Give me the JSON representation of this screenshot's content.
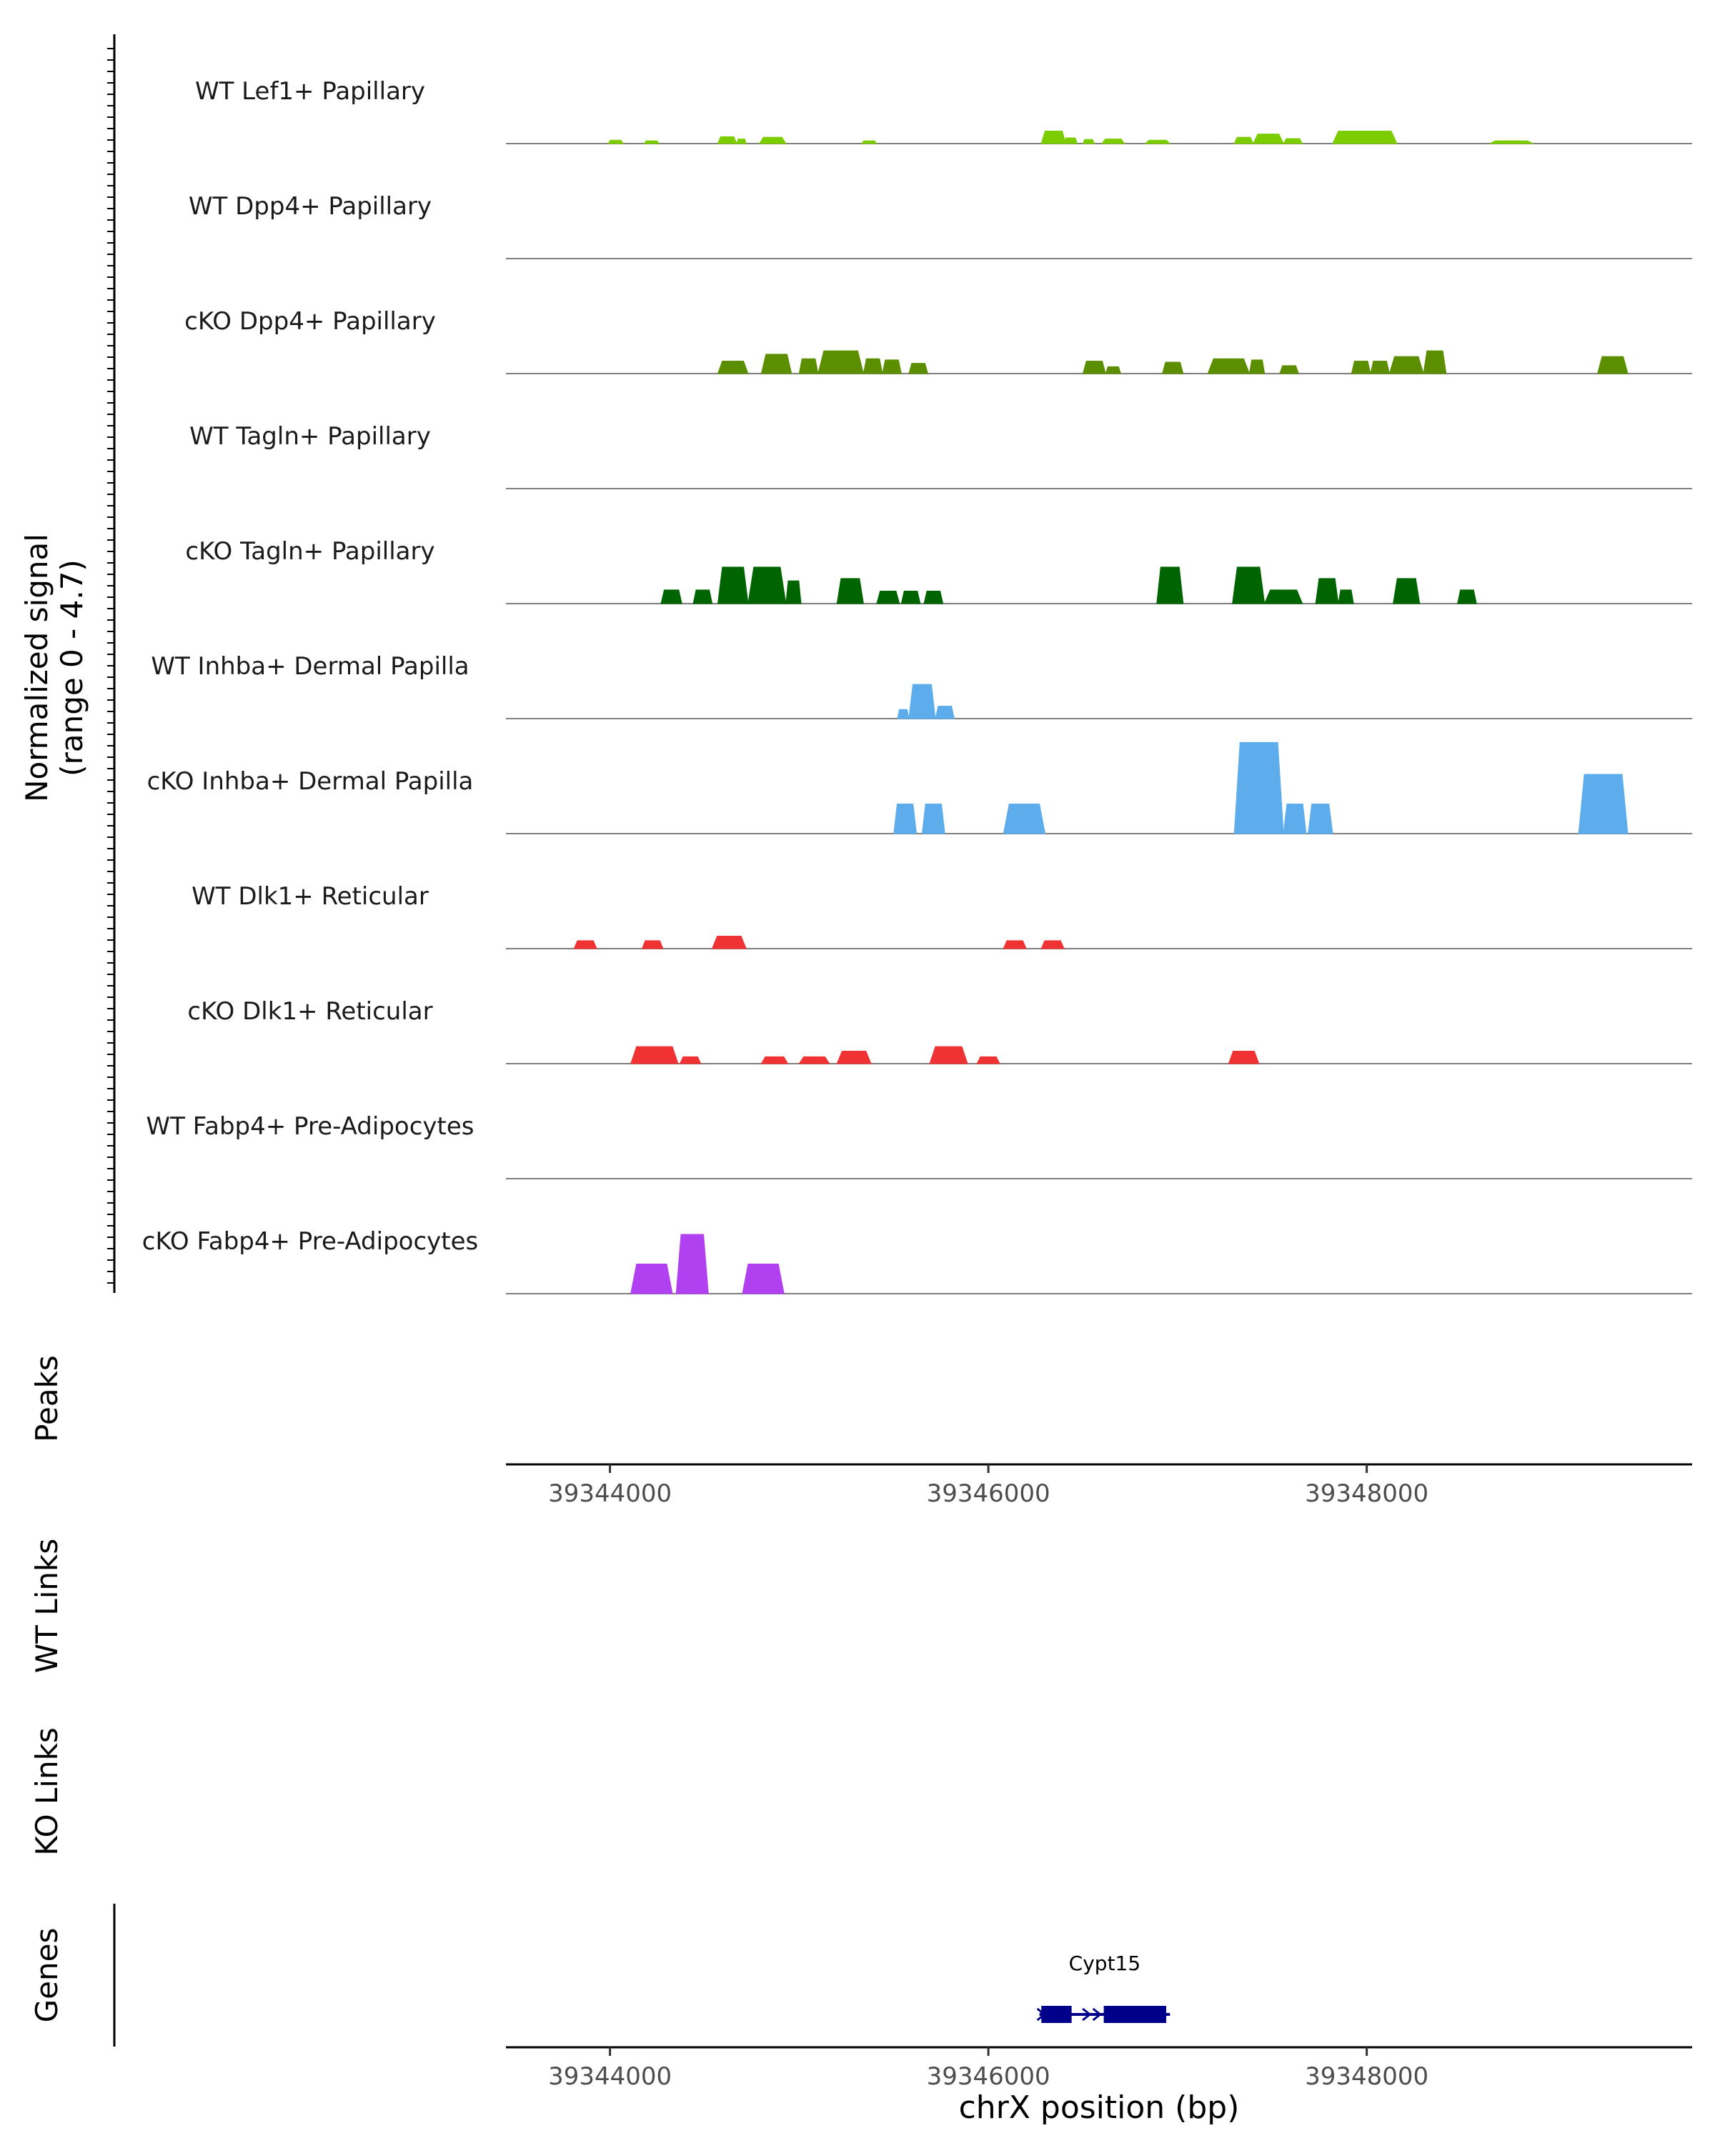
{
  "chart_data": {
    "type": "coverage-track",
    "y_axis_label_line1": "Normalized signal",
    "y_axis_label_line2": "(range 0 - 4.7)",
    "ylim": [
      0,
      4.7
    ],
    "xlim": [
      39343450,
      39349720
    ],
    "x_ticks": [
      39344000,
      39346000,
      39348000
    ],
    "x_tick_labels": [
      "39344000",
      "39346000",
      "39348000"
    ],
    "x_label": "chrX position (bp)",
    "panel_labels": {
      "peaks": "Peaks",
      "wt_links": "WT Links",
      "ko_links": "KO Links",
      "genes": "Genes"
    },
    "tracks": [
      {
        "name": "WT Lef1+ Papillary",
        "color": "#7CCD00",
        "peaks": [
          [
            39343990,
            39344070,
            0.15
          ],
          [
            39344180,
            39344260,
            0.12
          ],
          [
            39344570,
            39344670,
            0.3
          ],
          [
            39344670,
            39344720,
            0.2
          ],
          [
            39344790,
            39344930,
            0.28
          ],
          [
            39345330,
            39345410,
            0.12
          ],
          [
            39346280,
            39346410,
            0.55
          ],
          [
            39346400,
            39346470,
            0.25
          ],
          [
            39346500,
            39346560,
            0.18
          ],
          [
            39346600,
            39346720,
            0.2
          ],
          [
            39346830,
            39346960,
            0.15
          ],
          [
            39347300,
            39347400,
            0.28
          ],
          [
            39347400,
            39347560,
            0.42
          ],
          [
            39347560,
            39347660,
            0.22
          ],
          [
            39347820,
            39348160,
            0.55
          ],
          [
            39348650,
            39348880,
            0.12
          ]
        ]
      },
      {
        "name": "WT Dpp4+ Papillary",
        "color": "#5B8E00",
        "peaks": []
      },
      {
        "name": "cKO Dpp4+ Papillary",
        "color": "#5B8E00",
        "peaks": [
          [
            39344570,
            39344730,
            0.55
          ],
          [
            39344800,
            39344960,
            0.85
          ],
          [
            39345000,
            39345100,
            0.65
          ],
          [
            39345100,
            39345340,
            1.0
          ],
          [
            39345340,
            39345440,
            0.65
          ],
          [
            39345440,
            39345540,
            0.6
          ],
          [
            39345580,
            39345680,
            0.45
          ],
          [
            39346500,
            39346620,
            0.55
          ],
          [
            39346620,
            39346700,
            0.3
          ],
          [
            39346920,
            39347030,
            0.5
          ],
          [
            39347160,
            39347380,
            0.65
          ],
          [
            39347380,
            39347460,
            0.6
          ],
          [
            39347540,
            39347640,
            0.35
          ],
          [
            39347920,
            39348020,
            0.55
          ],
          [
            39348020,
            39348120,
            0.55
          ],
          [
            39348120,
            39348300,
            0.75
          ],
          [
            39348300,
            39348420,
            1.0
          ],
          [
            39349220,
            39349380,
            0.75
          ]
        ]
      },
      {
        "name": "WT Tagln+ Papillary",
        "color": "#006400",
        "peaks": []
      },
      {
        "name": "cKO Tagln+ Papillary",
        "color": "#006400",
        "peaks": [
          [
            39344270,
            39344380,
            0.6
          ],
          [
            39344440,
            39344540,
            0.6
          ],
          [
            39344570,
            39344730,
            1.6
          ],
          [
            39344730,
            39344930,
            1.6
          ],
          [
            39344930,
            39345010,
            1.0
          ],
          [
            39345200,
            39345340,
            1.1
          ],
          [
            39345410,
            39345530,
            0.55
          ],
          [
            39345540,
            39345640,
            0.55
          ],
          [
            39345660,
            39345760,
            0.55
          ],
          [
            39346890,
            39347030,
            1.6
          ],
          [
            39347290,
            39347460,
            1.6
          ],
          [
            39347460,
            39347660,
            0.6
          ],
          [
            39347730,
            39347850,
            1.1
          ],
          [
            39347850,
            39347930,
            0.6
          ],
          [
            39348140,
            39348280,
            1.1
          ],
          [
            39348480,
            39348580,
            0.6
          ]
        ]
      },
      {
        "name": "WT Inhba+ Dermal Papilla",
        "color": "#5DADEC",
        "peaks": [
          [
            39345520,
            39345580,
            0.4
          ],
          [
            39345580,
            39345720,
            1.5
          ],
          [
            39345720,
            39345820,
            0.55
          ]
        ]
      },
      {
        "name": "cKO Inhba+ Dermal Papilla",
        "color": "#5DADEC",
        "peaks": [
          [
            39345500,
            39345620,
            1.3
          ],
          [
            39345650,
            39345770,
            1.3
          ],
          [
            39346080,
            39346300,
            1.3
          ],
          [
            39347300,
            39347560,
            4.0
          ],
          [
            39347560,
            39347680,
            1.3
          ],
          [
            39347690,
            39347820,
            1.3
          ],
          [
            39349120,
            39349380,
            2.6
          ]
        ]
      },
      {
        "name": "WT Dlk1+ Reticular",
        "color": "#F03232",
        "peaks": [
          [
            39343810,
            39343930,
            0.35
          ],
          [
            39344170,
            39344280,
            0.35
          ],
          [
            39344540,
            39344720,
            0.55
          ],
          [
            39346080,
            39346200,
            0.35
          ],
          [
            39346280,
            39346400,
            0.35
          ]
        ]
      },
      {
        "name": "cKO Dlk1+ Reticular",
        "color": "#F03232",
        "peaks": [
          [
            39344110,
            39344360,
            0.75
          ],
          [
            39344370,
            39344480,
            0.3
          ],
          [
            39344800,
            39344940,
            0.3
          ],
          [
            39345000,
            39345160,
            0.3
          ],
          [
            39345200,
            39345380,
            0.55
          ],
          [
            39345690,
            39345890,
            0.75
          ],
          [
            39345940,
            39346060,
            0.3
          ],
          [
            39347270,
            39347430,
            0.55
          ]
        ]
      },
      {
        "name": "WT Fabp4+ Pre-Adipocytes",
        "color": "#B040F0",
        "peaks": []
      },
      {
        "name": "cKO Fabp4+ Pre-Adipocytes",
        "color": "#B040F0",
        "peaks": [
          [
            39344110,
            39344330,
            1.3
          ],
          [
            39344350,
            39344520,
            2.6
          ],
          [
            39344700,
            39344920,
            1.3
          ]
        ]
      }
    ],
    "gene": {
      "name": "Cypt15",
      "start": 39346270,
      "end": 39346960,
      "exons": [
        [
          39346280,
          39346440
        ],
        [
          39346610,
          39346940
        ]
      ],
      "strand": "+",
      "color": "#00008B"
    }
  }
}
